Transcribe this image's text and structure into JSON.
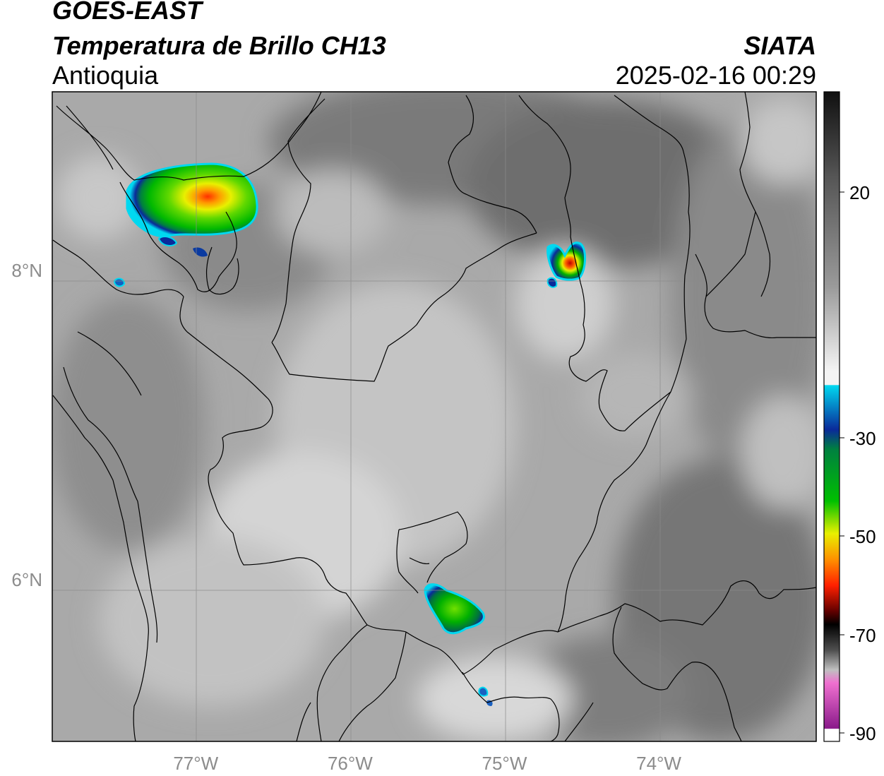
{
  "header": {
    "satellite": "GOES-EAST",
    "product": "Temperatura de Brillo CH13",
    "region": "Antioquia",
    "organization": "SIATA",
    "datetime": "2025-02-16 00:29"
  },
  "map": {
    "lon_range": [
      -77.93,
      -72.98
    ],
    "lat_range": [
      4.95,
      9.15
    ],
    "lon_ticks": [
      {
        "value": -77,
        "label": "77°W"
      },
      {
        "value": -76,
        "label": "76°W"
      },
      {
        "value": -75,
        "label": "75°W"
      },
      {
        "value": -74,
        "label": "74°W"
      }
    ],
    "lat_ticks": [
      {
        "value": 8,
        "label": "8°N"
      },
      {
        "value": 6,
        "label": "6°N"
      }
    ],
    "gridlines": true
  },
  "colorbar": {
    "unit_range": [
      -90,
      30
    ],
    "ticks": [
      {
        "value": 20,
        "label": "20"
      },
      {
        "value": -30,
        "label": "-30"
      },
      {
        "value": -50,
        "label": "-50"
      },
      {
        "value": -70,
        "label": "-70"
      },
      {
        "value": -90,
        "label": "-90"
      }
    ],
    "colors": {
      "warm_top": "#111111",
      "warm_mid": "#8a8a8a",
      "neutral": "#f2f2f2",
      "cyan": "#00d8f0",
      "blue": "#0a2a9a",
      "green": "#00b000",
      "yellow": "#f0f000",
      "orange": "#ff9000",
      "red": "#e00000",
      "dark_red": "#400000",
      "magenta": "#d040c0",
      "purple": "#8a1a8a"
    }
  },
  "features": [
    {
      "type": "convective-cell",
      "lon": -76.9,
      "lat": 8.55,
      "min_temp": -55
    },
    {
      "type": "convective-cell",
      "lon": -74.58,
      "lat": 8.1,
      "min_temp": -60
    },
    {
      "type": "convective-cell",
      "lon": -75.28,
      "lat": 5.85,
      "min_temp": -42
    }
  ]
}
